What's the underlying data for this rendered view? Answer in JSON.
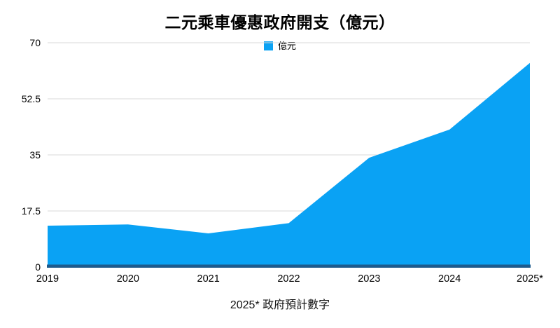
{
  "page": {
    "title": "二元乘車優惠政府開支（億元）",
    "footnote": "2025* 政府預計數字"
  },
  "legend": {
    "label": "億元",
    "swatch_color": "#0aa2f4"
  },
  "chart_data": {
    "type": "area",
    "title": "二元乘車優惠政府開支（億元）",
    "categories": [
      "2019",
      "2020",
      "2021",
      "2022",
      "2023",
      "2024",
      "2025*"
    ],
    "series": [
      {
        "name": "億元",
        "values": [
          12.9,
          13.3,
          10.5,
          13.7,
          34.1,
          42.9,
          63.7
        ]
      }
    ],
    "xlabel": "",
    "ylabel": "",
    "ylim": [
      0,
      70
    ],
    "y_ticks": [
      0,
      17.5,
      35,
      52.5,
      70
    ],
    "grid": true,
    "legend_position": "top-center",
    "footnote": "2025* 政府預計數字",
    "colors": {
      "area": "#0aa2f4",
      "axis_line": "#1e5a8c",
      "gridline": "#d9d9d9",
      "tick_text": "#000000"
    }
  }
}
